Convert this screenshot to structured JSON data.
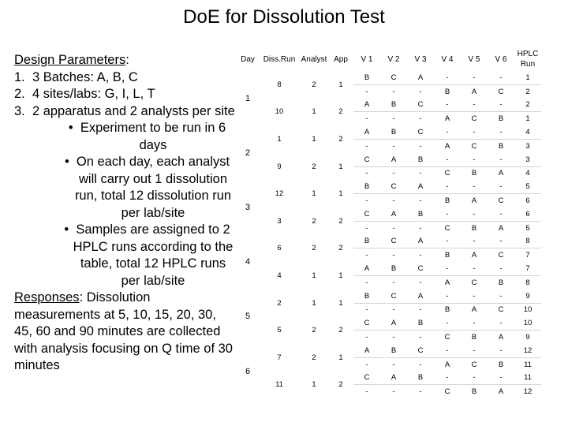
{
  "title": "DoE for Dissolution Test",
  "left": {
    "design_heading": "Design Parameters",
    "design_colon": ":",
    "items": [
      {
        "num": "1.",
        "text": "3 Batches: A, B, C"
      },
      {
        "num": "2.",
        "text": "4 sites/labs: G, I, L, T"
      },
      {
        "num": "3.",
        "text": "2 apparatus and 2 analysts per site"
      }
    ],
    "bullets": [
      "Experiment to be run in 6 days",
      "On each day, each analyst will carry out 1 dissolution run, total 12 dissolution run per lab/site",
      "Samples are assigned to 2 HPLC runs according to the table, total 12 HPLC runs per lab/site"
    ],
    "responses_heading": "Responses",
    "responses_text": ": Dissolution measurements at 5, 10, 15, 20, 30, 45, 60 and 90 minutes are collected with analysis focusing on Q time of 30 minutes"
  },
  "table": {
    "headers": [
      "Day",
      "Diss.Run",
      "Analyst",
      "App",
      "V 1",
      "V 2",
      "V 3",
      "V 4",
      "V 5",
      "V 6",
      "HPLC Run"
    ],
    "days": [
      {
        "day": "1",
        "runs": [
          {
            "run": "8",
            "analyst": "2",
            "app": "1",
            "rows": [
              [
                "B",
                "C",
                "A",
                "-",
                "-",
                "-",
                "1"
              ],
              [
                "-",
                "-",
                "-",
                "B",
                "A",
                "C",
                "2"
              ]
            ]
          },
          {
            "run": "10",
            "analyst": "1",
            "app": "2",
            "rows": [
              [
                "A",
                "B",
                "C",
                "-",
                "-",
                "-",
                "2"
              ],
              [
                "-",
                "-",
                "-",
                "A",
                "C",
                "B",
                "1"
              ]
            ]
          }
        ]
      },
      {
        "day": "2",
        "runs": [
          {
            "run": "1",
            "analyst": "1",
            "app": "2",
            "rows": [
              [
                "A",
                "B",
                "C",
                "-",
                "-",
                "-",
                "4"
              ],
              [
                "-",
                "-",
                "-",
                "A",
                "C",
                "B",
                "3"
              ]
            ]
          },
          {
            "run": "9",
            "analyst": "2",
            "app": "1",
            "rows": [
              [
                "C",
                "A",
                "B",
                "-",
                "-",
                "-",
                "3"
              ],
              [
                "-",
                "-",
                "-",
                "C",
                "B",
                "A",
                "4"
              ]
            ]
          }
        ]
      },
      {
        "day": "3",
        "runs": [
          {
            "run": "12",
            "analyst": "1",
            "app": "1",
            "rows": [
              [
                "B",
                "C",
                "A",
                "-",
                "-",
                "-",
                "5"
              ],
              [
                "-",
                "-",
                "-",
                "B",
                "A",
                "C",
                "6"
              ]
            ]
          },
          {
            "run": "3",
            "analyst": "2",
            "app": "2",
            "rows": [
              [
                "C",
                "A",
                "B",
                "-",
                "-",
                "-",
                "6"
              ],
              [
                "-",
                "-",
                "-",
                "C",
                "B",
                "A",
                "5"
              ]
            ]
          }
        ]
      },
      {
        "day": "4",
        "runs": [
          {
            "run": "6",
            "analyst": "2",
            "app": "2",
            "rows": [
              [
                "B",
                "C",
                "A",
                "-",
                "-",
                "-",
                "8"
              ],
              [
                "-",
                "-",
                "-",
                "B",
                "A",
                "C",
                "7"
              ]
            ]
          },
          {
            "run": "4",
            "analyst": "1",
            "app": "1",
            "rows": [
              [
                "A",
                "B",
                "C",
                "-",
                "-",
                "-",
                "7"
              ],
              [
                "-",
                "-",
                "-",
                "A",
                "C",
                "B",
                "8"
              ]
            ]
          }
        ]
      },
      {
        "day": "5",
        "runs": [
          {
            "run": "2",
            "analyst": "1",
            "app": "1",
            "rows": [
              [
                "B",
                "C",
                "A",
                "-",
                "-",
                "-",
                "9"
              ],
              [
                "-",
                "-",
                "-",
                "B",
                "A",
                "C",
                "10"
              ]
            ]
          },
          {
            "run": "5",
            "analyst": "2",
            "app": "2",
            "rows": [
              [
                "C",
                "A",
                "B",
                "-",
                "-",
                "-",
                "10"
              ],
              [
                "-",
                "-",
                "-",
                "C",
                "B",
                "A",
                "9"
              ]
            ]
          }
        ]
      },
      {
        "day": "6",
        "runs": [
          {
            "run": "7",
            "analyst": "2",
            "app": "1",
            "rows": [
              [
                "A",
                "B",
                "C",
                "-",
                "-",
                "-",
                "12"
              ],
              [
                "-",
                "-",
                "-",
                "A",
                "C",
                "B",
                "11"
              ]
            ]
          },
          {
            "run": "11",
            "analyst": "1",
            "app": "2",
            "rows": [
              [
                "C",
                "A",
                "B",
                "-",
                "-",
                "-",
                "11"
              ],
              [
                "-",
                "-",
                "-",
                "C",
                "B",
                "A",
                "12"
              ]
            ]
          }
        ]
      }
    ]
  }
}
